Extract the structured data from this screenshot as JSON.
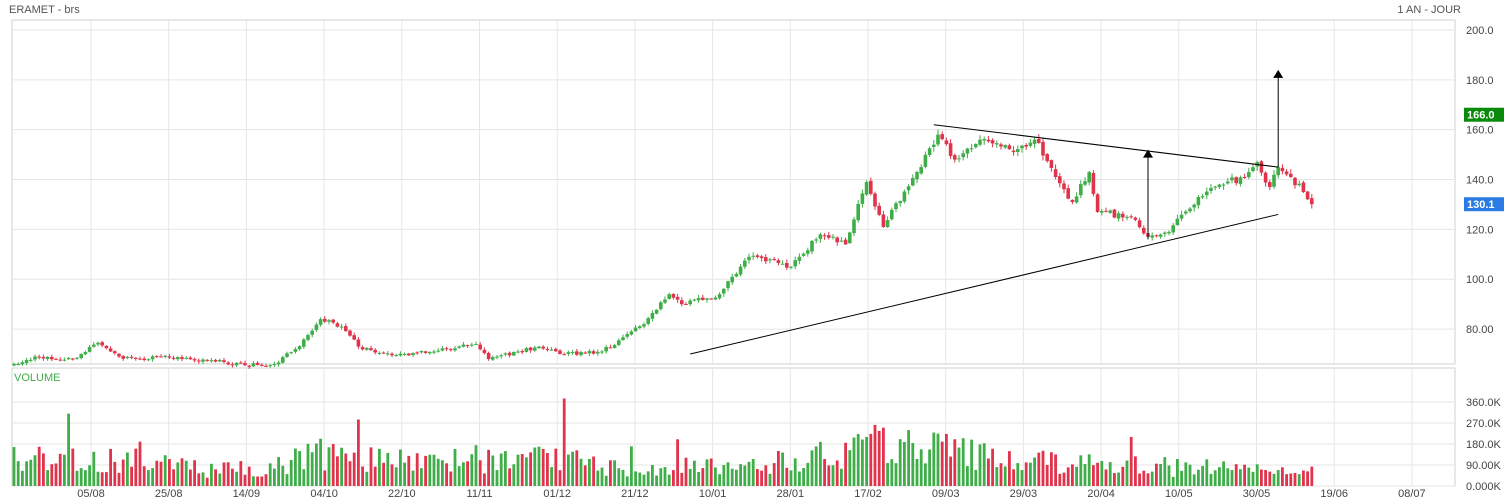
{
  "header": {
    "instrument": "ERAMET - brs",
    "period": "1 AN - JOUR"
  },
  "price_panel": {
    "y_ticks": [
      "200.0",
      "180.0",
      "160.0",
      "140.0",
      "120.0",
      "100.0",
      "80.00"
    ],
    "badge_high": "166.0",
    "badge_last": "130.1"
  },
  "volume_panel": {
    "label": "VOLUME",
    "y_ticks": [
      "360.0K",
      "270.0K",
      "180.0K",
      "90.00K",
      "0.000K"
    ]
  },
  "x_ticks": [
    "05/08",
    "25/08",
    "14/09",
    "04/10",
    "22/10",
    "11/11",
    "01/12",
    "21/12",
    "10/01",
    "28/01",
    "17/02",
    "09/03",
    "29/03",
    "20/04",
    "10/05",
    "30/05",
    "19/06",
    "08/07"
  ],
  "colors": {
    "up": "#3fae49",
    "down": "#e0334c",
    "badge_high": "#0a8a0a",
    "badge_last": "#2a7be4",
    "grid": "#e6e6e6",
    "line": "#000000"
  },
  "chart_data": {
    "type": "candlestick",
    "title": "ERAMET - brs",
    "period": "1 AN - JOUR",
    "ylim_price": [
      66,
      204
    ],
    "ylim_volume": [
      0,
      420000
    ],
    "last_price": 130.1,
    "high_marker": 166.0,
    "anchors": [
      {
        "day": 0,
        "close": 66
      },
      {
        "day": 5,
        "close": 69
      },
      {
        "day": 10,
        "close": 68
      },
      {
        "day": 15,
        "close": 68.5
      },
      {
        "day": 20,
        "close": 74.5
      },
      {
        "day": 25,
        "close": 69
      },
      {
        "day": 30,
        "close": 68
      },
      {
        "day": 35,
        "close": 69
      },
      {
        "day": 40,
        "close": 68
      },
      {
        "day": 47,
        "close": 67.5
      },
      {
        "day": 55,
        "close": 65.5
      },
      {
        "day": 62,
        "close": 66
      },
      {
        "day": 67,
        "close": 72
      },
      {
        "day": 73,
        "close": 84
      },
      {
        "day": 78,
        "close": 81
      },
      {
        "day": 82,
        "close": 73
      },
      {
        "day": 90,
        "close": 69.5
      },
      {
        "day": 100,
        "close": 71
      },
      {
        "day": 110,
        "close": 74
      },
      {
        "day": 113,
        "close": 68
      },
      {
        "day": 120,
        "close": 71
      },
      {
        "day": 125,
        "close": 73
      },
      {
        "day": 130,
        "close": 70
      },
      {
        "day": 140,
        "close": 71
      },
      {
        "day": 150,
        "close": 82
      },
      {
        "day": 156,
        "close": 94
      },
      {
        "day": 160,
        "close": 90
      },
      {
        "day": 168,
        "close": 94
      },
      {
        "day": 175,
        "close": 109
      },
      {
        "day": 180,
        "close": 108
      },
      {
        "day": 185,
        "close": 105
      },
      {
        "day": 192,
        "close": 118
      },
      {
        "day": 198,
        "close": 114
      },
      {
        "day": 203,
        "close": 139
      },
      {
        "day": 207,
        "close": 121
      },
      {
        "day": 215,
        "close": 143
      },
      {
        "day": 220,
        "close": 158
      },
      {
        "day": 224,
        "close": 148
      },
      {
        "day": 230,
        "close": 156
      },
      {
        "day": 238,
        "close": 151
      },
      {
        "day": 243,
        "close": 156
      },
      {
        "day": 248,
        "close": 141
      },
      {
        "day": 252,
        "close": 131
      },
      {
        "day": 256,
        "close": 143
      },
      {
        "day": 258,
        "close": 127
      },
      {
        "day": 266,
        "close": 125
      },
      {
        "day": 270,
        "close": 117
      },
      {
        "day": 275,
        "close": 119
      },
      {
        "day": 282,
        "close": 133
      },
      {
        "day": 287,
        "close": 138
      },
      {
        "day": 293,
        "close": 141
      },
      {
        "day": 296,
        "close": 147
      },
      {
        "day": 299,
        "close": 137
      },
      {
        "day": 301,
        "close": 145
      },
      {
        "day": 304,
        "close": 141
      },
      {
        "day": 307,
        "close": 135
      },
      {
        "day": 309,
        "close": 130.1
      }
    ],
    "volume_profile": [
      {
        "day": 0,
        "volume": 130000
      },
      {
        "day": 15,
        "volume": 120000
      },
      {
        "day": 30,
        "volume": 110000
      },
      {
        "day": 50,
        "volume": 70000
      },
      {
        "day": 62,
        "volume": 90000
      },
      {
        "day": 75,
        "volume": 150000
      },
      {
        "day": 95,
        "volume": 110000
      },
      {
        "day": 125,
        "volume": 120000
      },
      {
        "day": 150,
        "volume": 80000
      },
      {
        "day": 175,
        "volume": 100000
      },
      {
        "day": 205,
        "volume": 180000
      },
      {
        "day": 225,
        "volume": 150000
      },
      {
        "day": 250,
        "volume": 100000
      },
      {
        "day": 270,
        "volume": 90000
      },
      {
        "day": 309,
        "volume": 60000
      }
    ],
    "volume_spikes": [
      {
        "day": 13,
        "volume": 310000
      },
      {
        "day": 82,
        "volume": 285000
      },
      {
        "day": 131,
        "volume": 375000
      },
      {
        "day": 30,
        "volume": 190000
      },
      {
        "day": 76,
        "volume": 180000
      },
      {
        "day": 110,
        "volume": 175000
      },
      {
        "day": 147,
        "volume": 170000
      },
      {
        "day": 158,
        "volume": 200000
      },
      {
        "day": 205,
        "volume": 262000
      },
      {
        "day": 207,
        "volume": 250000
      },
      {
        "day": 226,
        "volume": 205000
      },
      {
        "day": 266,
        "volume": 210000
      }
    ],
    "trendlines": [
      {
        "name": "upper",
        "points": [
          [
            219,
            162
          ],
          [
            301,
            145
          ]
        ]
      },
      {
        "name": "lower",
        "points": [
          [
            161,
            70
          ],
          [
            301,
            126
          ]
        ]
      }
    ],
    "target_arrows": [
      {
        "name": "measured-move",
        "day": 270,
        "from": 116,
        "to": 152
      },
      {
        "name": "breakout-target",
        "day": 301,
        "from": 145,
        "to": 184
      }
    ]
  }
}
